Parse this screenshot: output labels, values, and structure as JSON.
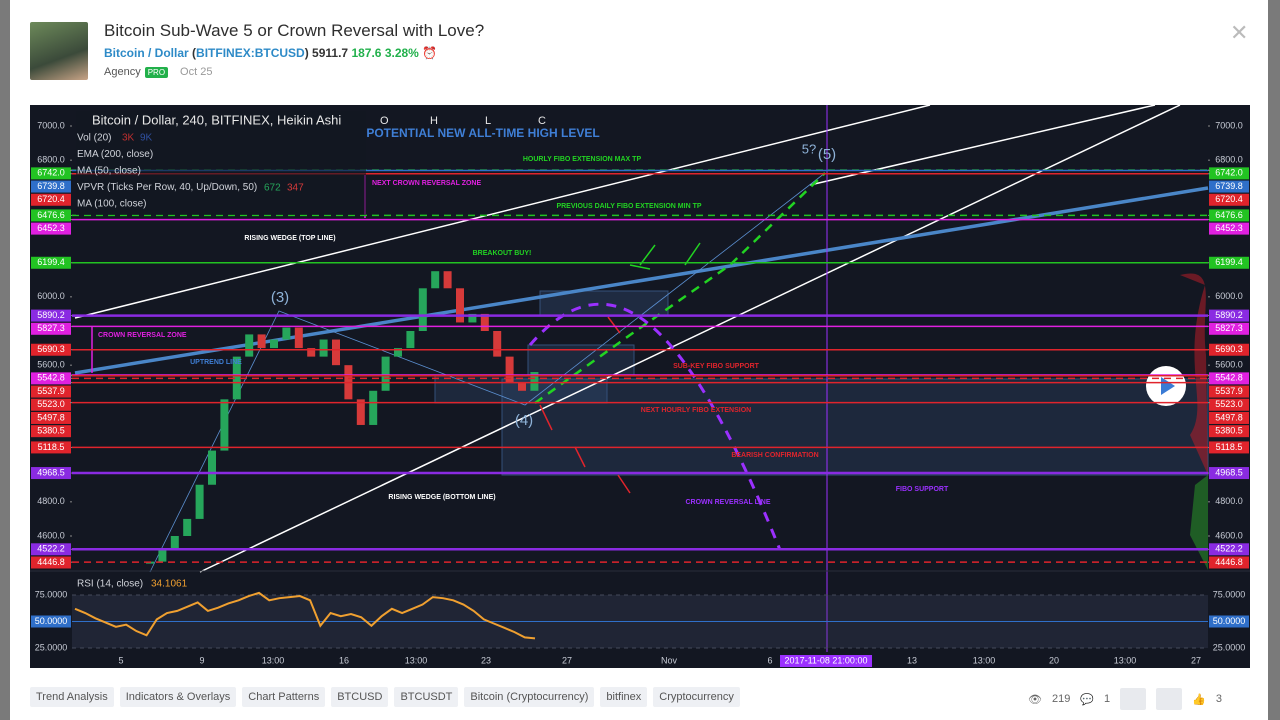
{
  "header": {
    "title": "Bitcoin Sub-Wave 5 or Crown Reversal with Love?",
    "symbol": "Bitcoin / Dollar",
    "exchange": "BITFINEX:BTCUSD",
    "price": "5911.7",
    "change": "187.6",
    "change_pct": "3.28%",
    "author_type": "Agency",
    "badge": "PRO",
    "date": "Oct 25"
  },
  "chart": {
    "legend": {
      "title": "Bitcoin / Dollar, 240, BITFINEX, Heikin Ashi",
      "ohlc": [
        "O",
        "H",
        "L",
        "C"
      ],
      "indicators": [
        "Vol (20)",
        "EMA (200, close)",
        "MA (50, close)",
        "VPVR (Ticks Per Row, 40, Up/Down, 50)",
        "MA (100, close)"
      ],
      "vol_values": [
        "3K",
        "9K"
      ],
      "vpvr_values": [
        "672",
        "347"
      ]
    },
    "price_levels": [
      {
        "value": 7000,
        "label": "7000.0"
      },
      {
        "value": 6800,
        "label": "6800.0"
      },
      {
        "value": 6742,
        "label": "6742.0",
        "color": "#22c322",
        "style": "dashed"
      },
      {
        "value": 6739.8,
        "label": "6739.8",
        "color": "#2f6fc9"
      },
      {
        "value": 6720.4,
        "label": "6720.4",
        "color": "#e0242c"
      },
      {
        "value": 6476.6,
        "label": "6476.6",
        "color": "#22c322",
        "style": "dashed"
      },
      {
        "value": 6452.3,
        "label": "6452.3",
        "color": "#e020e0"
      },
      {
        "value": 6199.4,
        "label": "6199.4",
        "color": "#22c322"
      },
      {
        "value": 6000,
        "label": "6000.0"
      },
      {
        "value": 5890.2,
        "label": "5890.2",
        "color": "#8a2be2"
      },
      {
        "value": 5827.3,
        "label": "5827.3",
        "color": "#e020e0"
      },
      {
        "value": 5690.3,
        "label": "5690.3",
        "color": "#e0242c"
      },
      {
        "value": 5600,
        "label": "5600.0"
      },
      {
        "value": 5542.8,
        "label": "5542.8",
        "color": "#e020e0"
      },
      {
        "value": 5537.9,
        "label": "5537.9",
        "color": "#e0242c"
      },
      {
        "value": 5523,
        "label": "5523.0",
        "color": "#e0242c",
        "style": "dashed"
      },
      {
        "value": 5497.8,
        "label": "5497.8",
        "color": "#e0242c"
      },
      {
        "value": 5380.5,
        "label": "5380.5",
        "color": "#e0242c"
      },
      {
        "value": 5118.5,
        "label": "5118.5",
        "color": "#e0242c"
      },
      {
        "value": 4968.5,
        "label": "4968.5",
        "color": "#8a2be2"
      },
      {
        "value": 4800,
        "label": "4800.0"
      },
      {
        "value": 4600,
        "label": "4600.0"
      },
      {
        "value": 4522.2,
        "label": "4522.2",
        "color": "#8a2be2"
      },
      {
        "value": 4446.8,
        "label": "4446.8",
        "color": "#e0242c",
        "style": "dashed"
      }
    ],
    "closes": [
      4450,
      4520,
      4600,
      4700,
      4900,
      5100,
      5400,
      5650,
      5780,
      5700,
      5750,
      5820,
      5700,
      5650,
      5750,
      5600,
      5400,
      5250,
      5450,
      5650,
      5700,
      5800,
      6050,
      6150,
      6050,
      5850,
      5900,
      5800,
      5650,
      5500,
      5450,
      5560
    ],
    "annotations": [
      "POTENTIAL NEW ALL-TIME HIGH LEVEL",
      "HOURLY FIBO EXTENSION MAX TP",
      "NEXT CROWN REVERSAL ZONE",
      "PREVIOUS DAILY FIBO EXTENSION MIN TP",
      "RISING WEDGE (TOP LINE)",
      "BREAKOUT BUY!",
      "CROWN REVERSAL ZONE",
      "UPTREND LINE",
      "SUB-KEY FIBO SUPPORT",
      "NEXT HOURLY FIBO EXTENSION",
      "BEARISH CONFIRMATION",
      "CROWN REVERSAL LINE",
      "FIBO SUPPORT",
      "RISING WEDGE (BOTTOM LINE)"
    ],
    "wave_labels": [
      "(3)",
      "(4)",
      "5?",
      "(5)"
    ],
    "time_labels": [
      "5",
      "9",
      "13:00",
      "16",
      "13:00",
      "23",
      "27",
      "Nov",
      "6",
      "2017-11-08 21:00:00",
      "13",
      "13:00",
      "20",
      "13:00",
      "27"
    ],
    "rsi": {
      "title": "RSI (14, close)",
      "last": "34.1061",
      "levels": [
        {
          "value": 75,
          "label": "75.0000"
        },
        {
          "value": 50,
          "label": "50.0000"
        },
        {
          "value": 25,
          "label": "25.0000"
        }
      ],
      "values": [
        62,
        58,
        53,
        49,
        45,
        47,
        41,
        37,
        52,
        58,
        60,
        64,
        68,
        60,
        63,
        67,
        70,
        74,
        77,
        70,
        72,
        73,
        74,
        70,
        46,
        58,
        55,
        57,
        54,
        46,
        55,
        62,
        58,
        62,
        66,
        73,
        72,
        70,
        66,
        60,
        52,
        48,
        44,
        40,
        35,
        34.1061
      ]
    }
  },
  "tags": [
    "Trend Analysis",
    "Indicators & Overlays",
    "Chart Patterns",
    "BTCUSD",
    "BTCUSDT",
    "Bitcoin (Cryptocurrency)",
    "bitfinex",
    "Cryptocurrency"
  ],
  "stats": {
    "views": "219",
    "comments": "1",
    "likes": "3"
  }
}
